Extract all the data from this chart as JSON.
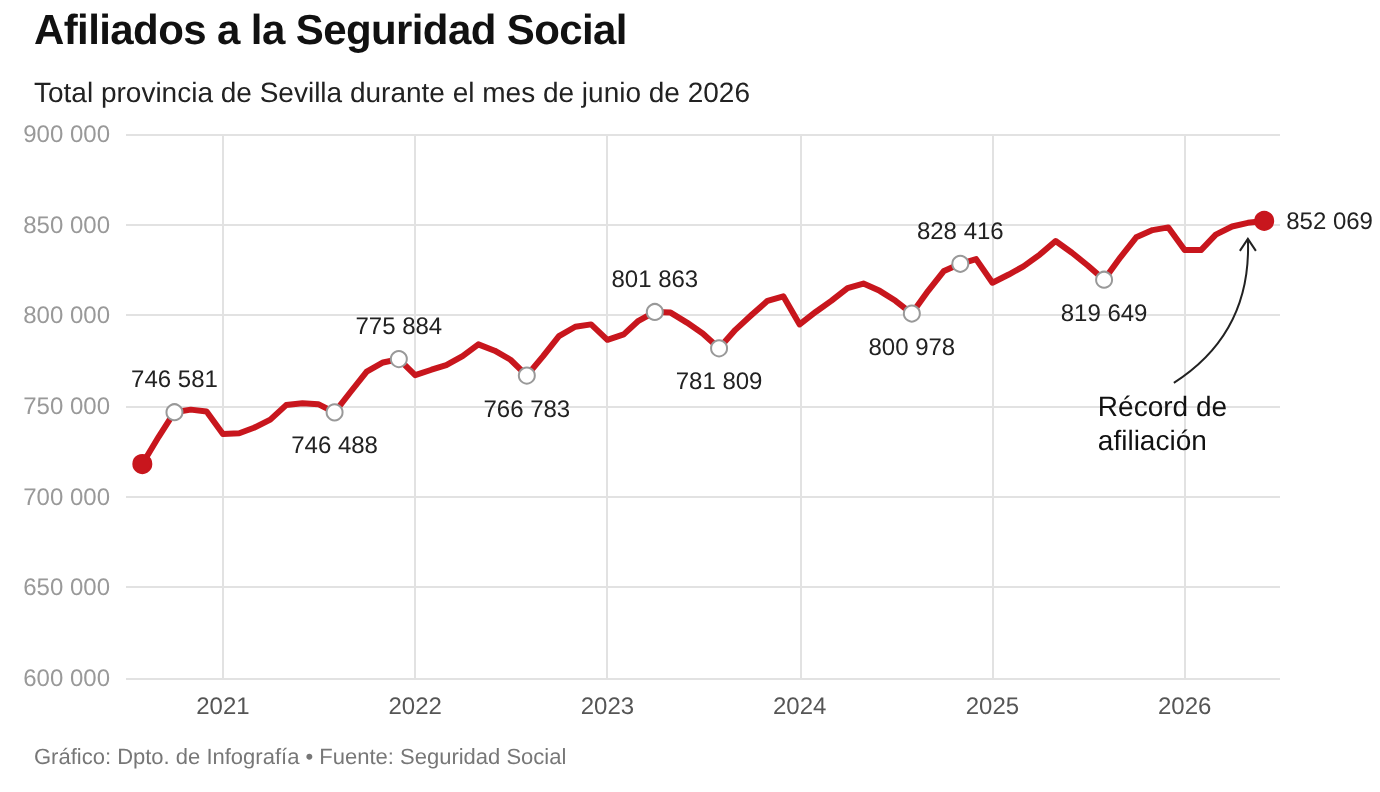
{
  "chart_data": {
    "type": "line",
    "title": "Afiliados a la Seguridad Social",
    "subtitle": "Total provincia de Sevilla durante el mes de junio de 2026",
    "x": [
      "2020-08",
      "2020-09",
      "2020-10",
      "2020-11",
      "2020-12",
      "2021-01",
      "2021-02",
      "2021-03",
      "2021-04",
      "2021-05",
      "2021-06",
      "2021-07",
      "2021-08",
      "2021-09",
      "2021-10",
      "2021-11",
      "2021-12",
      "2022-01",
      "2022-02",
      "2022-03",
      "2022-04",
      "2022-05",
      "2022-06",
      "2022-07",
      "2022-08",
      "2022-09",
      "2022-10",
      "2022-11",
      "2022-12",
      "2023-01",
      "2023-02",
      "2023-03",
      "2023-04",
      "2023-05",
      "2023-06",
      "2023-07",
      "2023-08",
      "2023-09",
      "2023-10",
      "2023-11",
      "2023-12",
      "2024-01",
      "2024-02",
      "2024-03",
      "2024-04",
      "2024-05",
      "2024-06",
      "2024-07",
      "2024-08",
      "2024-09",
      "2024-10",
      "2024-11",
      "2024-12",
      "2025-01",
      "2025-02",
      "2025-03",
      "2025-04",
      "2025-05",
      "2025-06",
      "2025-07",
      "2025-08",
      "2025-09",
      "2025-10",
      "2025-11",
      "2025-12",
      "2026-01",
      "2026-02",
      "2026-03",
      "2026-04",
      "2026-05",
      "2026-06"
    ],
    "series": [
      {
        "color": "#c8161d",
        "values": [
          718000,
          733000,
          746581,
          748000,
          747000,
          734500,
          735000,
          738000,
          742500,
          750500,
          751500,
          751000,
          746488,
          758000,
          769000,
          774000,
          775884,
          767000,
          770000,
          772500,
          777500,
          784000,
          780500,
          775500,
          766783,
          777500,
          788500,
          793700,
          795000,
          786500,
          789500,
          797000,
          801863,
          801500,
          796000,
          790000,
          781809,
          792000,
          800000,
          808000,
          810500,
          795000,
          802000,
          808000,
          815000,
          817500,
          813500,
          808000,
          800978,
          813500,
          824500,
          828416,
          831000,
          818000,
          822500,
          827000,
          833500,
          841000,
          834500,
          827500,
          819649,
          832000,
          843000,
          847000,
          848500,
          836000,
          836000,
          844500,
          849000,
          851000,
          852069
        ],
        "value_labels": [
          null,
          null,
          "746 581",
          null,
          null,
          null,
          null,
          null,
          null,
          null,
          null,
          null,
          "746 488",
          null,
          null,
          null,
          "775 884",
          null,
          null,
          null,
          null,
          null,
          null,
          null,
          "766 783",
          null,
          null,
          null,
          null,
          null,
          null,
          null,
          "801 863",
          null,
          null,
          null,
          "781 809",
          null,
          null,
          null,
          null,
          null,
          null,
          null,
          null,
          null,
          null,
          null,
          "800 978",
          null,
          null,
          "828 416",
          null,
          null,
          null,
          null,
          null,
          null,
          null,
          null,
          "819 649",
          null,
          null,
          null,
          null,
          null,
          null,
          null,
          null,
          null,
          "852 069"
        ]
      }
    ],
    "xlim": [
      "2020-07",
      "2026-07"
    ],
    "xticks": [
      "2021",
      "2022",
      "2023",
      "2024",
      "2025",
      "2026"
    ],
    "ylim": [
      600000,
      900000
    ],
    "yticks": [
      600000,
      650000,
      700000,
      750000,
      800000,
      850000,
      900000
    ],
    "grid": true,
    "line_style": "solid",
    "annotations": [
      {
        "text": "Récord de afiliación",
        "x": "2026-05",
        "y": 851000
      },
      "Gráfico: Dpto. de Infografía • Fuente: Seguridad Social"
    ]
  }
}
